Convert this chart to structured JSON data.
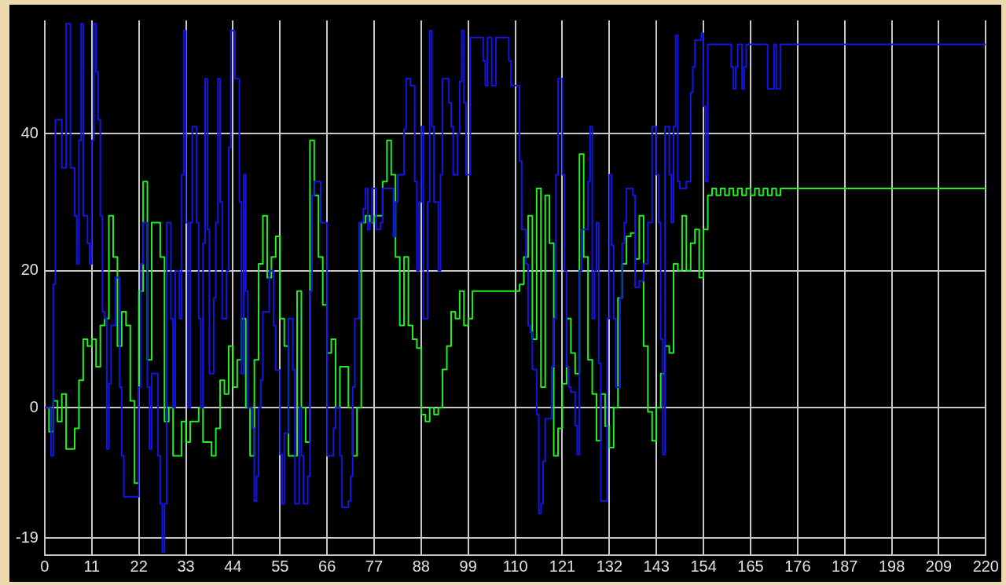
{
  "chart_data": {
    "type": "step",
    "xlim": [
      0,
      220
    ],
    "xticks": [
      0,
      11,
      22,
      33,
      44,
      55,
      66,
      77,
      88,
      99,
      110,
      121,
      132,
      143,
      154,
      165,
      176,
      187,
      198,
      209,
      220
    ],
    "ylim": [
      -21.5,
      56.5
    ],
    "yticks": [
      -19,
      0,
      20,
      40
    ],
    "grid": true,
    "series": [
      {
        "color": "#1414e6",
        "x": [
          0,
          1.5,
          2,
          2.5,
          4,
          5,
          6,
          7,
          7.5,
          8,
          8.5,
          9,
          10,
          10.5,
          11,
          11.5,
          12,
          12.5,
          13,
          13.5,
          14,
          14.5,
          15,
          15.5,
          16.5,
          17.5,
          18,
          18.5,
          22,
          22.5,
          23,
          24,
          24.5,
          25,
          26.5,
          27,
          27.5,
          28,
          28.5,
          29.5,
          30,
          30.5,
          31.5,
          32,
          32.5,
          33,
          33.5,
          34,
          34.5,
          35.5,
          36,
          36.5,
          37,
          37.5,
          38,
          38.5,
          39.5,
          40,
          40.5,
          41,
          41.5,
          42.5,
          43,
          43.5,
          44.5,
          45.5,
          46,
          46.5,
          47,
          47.5,
          48.5,
          49,
          49.5,
          50,
          50.5,
          51,
          52.5,
          53.5,
          54,
          55,
          55.5,
          56,
          57,
          58,
          58.5,
          59.5,
          60,
          60.5,
          61.5,
          62,
          62.5,
          63,
          64.5,
          66,
          67.5,
          68,
          69,
          69.5,
          71,
          71.5,
          72,
          72.5,
          73.5,
          74.5,
          75,
          75.5,
          76,
          76.5,
          77.5,
          78.5,
          79,
          81.5,
          82,
          82.5,
          84,
          84.5,
          85.5,
          86.5,
          87,
          87.5,
          88,
          88.5,
          89.5,
          90,
          90.5,
          91,
          92,
          92.5,
          93,
          94.5,
          95,
          95.5,
          96.5,
          97,
          97.5,
          98,
          98.5,
          99.5,
          102.5,
          103,
          103.5,
          104.5,
          105.5,
          108.5,
          109,
          111,
          111.5,
          112.5,
          113,
          113.5,
          114,
          115,
          115.5,
          116,
          116.5,
          117,
          118.5,
          119,
          119.5,
          120,
          121,
          121.5,
          122,
          122.5,
          123,
          124,
          124.5,
          125,
          125.5,
          127,
          127.5,
          128,
          128.5,
          129,
          129.5,
          130,
          131.5,
          132,
          132.5,
          133,
          133.5,
          134.5,
          135,
          135.5,
          136,
          137.5,
          138,
          139,
          140,
          141,
          142,
          143,
          143.5,
          144,
          144.5,
          145,
          146,
          146.5,
          147,
          147.5,
          148,
          148.5,
          150,
          151,
          151.5,
          152,
          153.5,
          154,
          154.5,
          155,
          160.5,
          161,
          161.5,
          162,
          163,
          163.5,
          164,
          169,
          170.5,
          171,
          172,
          220
        ],
        "values": [
          0,
          -7,
          18,
          42,
          35,
          56,
          35,
          28,
          21,
          39,
          56,
          28,
          24,
          21,
          39,
          56,
          49,
          42,
          28,
          14,
          13,
          -6,
          3.5,
          12,
          19,
          3,
          -7,
          -13,
          3,
          21,
          27,
          3,
          -6,
          5,
          -7,
          -14,
          -21,
          -14,
          27,
          13,
          0,
          20,
          13,
          34,
          55,
          27,
          0,
          27,
          41,
          27,
          13,
          0,
          24,
          48,
          26,
          5,
          16,
          27,
          48,
          30,
          13,
          20,
          38,
          55,
          48,
          30,
          5,
          34,
          17,
          0,
          -3,
          -13.6,
          -10,
          0,
          4,
          14,
          20,
          12,
          5.5,
          -6.8,
          -14,
          -3.7,
          13,
          5.6,
          -14,
          0,
          -7,
          -14,
          -10,
          17,
          31,
          33,
          27,
          -7,
          -3,
          0,
          -7,
          -14.5,
          -13.6,
          -10,
          3,
          13,
          27,
          29,
          32,
          26,
          27,
          32,
          26,
          27,
          32,
          25,
          30,
          34,
          40.6,
          48,
          47,
          33,
          20,
          30,
          41,
          13,
          30,
          55,
          41,
          30,
          20,
          34,
          48,
          44.5,
          41,
          34,
          40,
          47.6,
          55,
          44.5,
          34,
          54,
          50.6,
          47,
          54,
          47,
          54,
          50.6,
          47,
          36,
          26,
          21,
          12,
          11,
          5.6,
          -1,
          -15.4,
          -14,
          -7.8,
          -1.6,
          6,
          13,
          34,
          48,
          34,
          20,
          6,
          3,
          2.3,
          -2.6,
          -6.8,
          20,
          26,
          33,
          41,
          13,
          20,
          27,
          6.5,
          -13.6,
          13,
          34,
          23.7,
          13,
          3,
          16,
          24,
          27,
          32,
          31,
          17.6,
          18.5,
          21,
          27,
          41,
          34,
          27,
          10,
          -6.8,
          41,
          34,
          27,
          41,
          54.3,
          33,
          32,
          33,
          46,
          49.7,
          53.6,
          54.6,
          44,
          33,
          53,
          49.7,
          46.5,
          49.7,
          53,
          46.5,
          49.7,
          53,
          46.5,
          53,
          46.5,
          53,
          53
        ]
      },
      {
        "color": "#22ee22",
        "x": [
          0,
          1,
          2,
          3,
          4,
          5,
          7,
          8,
          9,
          10,
          11,
          12,
          13,
          14,
          15,
          16,
          17,
          18,
          19,
          20,
          21,
          22,
          23,
          24,
          25,
          27,
          28,
          29,
          30,
          32,
          33,
          34,
          36,
          37,
          39,
          40,
          41,
          42,
          43,
          44,
          45,
          46,
          47,
          48,
          49,
          50,
          51,
          52,
          53,
          54,
          55,
          56,
          57,
          59,
          60,
          61,
          62,
          63,
          64,
          65,
          66,
          67,
          68,
          69,
          71,
          72,
          73,
          74,
          75,
          76,
          77,
          79,
          80,
          81,
          82,
          83,
          84,
          85,
          86,
          87,
          88,
          89,
          90,
          91,
          92,
          93,
          94,
          95,
          96,
          97,
          98,
          99,
          100,
          111,
          112,
          113,
          114,
          115,
          116,
          117,
          118,
          119,
          120,
          121,
          122,
          123,
          124,
          125,
          126,
          127,
          128,
          129,
          130,
          131,
          132,
          133,
          134,
          135,
          136,
          137,
          138,
          139,
          140,
          141,
          142,
          143,
          144,
          145,
          146,
          147,
          148,
          149,
          150,
          151,
          152,
          153,
          154,
          155,
          156,
          157,
          158,
          159,
          160,
          161,
          162,
          163,
          164,
          165,
          166,
          167,
          168,
          169,
          170,
          171,
          172,
          220
        ],
        "values": [
          0,
          -3.5,
          1,
          -2,
          2,
          -6,
          -3,
          4,
          10,
          9,
          10,
          6,
          12,
          13,
          28,
          22,
          9,
          14,
          12,
          1,
          -11,
          17,
          33,
          7,
          27,
          22,
          -2,
          0,
          -7,
          -2,
          -5,
          -2,
          0,
          -5,
          -7,
          -3,
          4,
          2,
          9,
          3,
          7,
          13,
          0,
          -7,
          7,
          21,
          28,
          19,
          22,
          25,
          13,
          9,
          -7,
          17,
          0,
          -5,
          39,
          31,
          22,
          15,
          8,
          10,
          0,
          6,
          0,
          -7,
          0,
          27,
          28,
          27,
          28,
          33,
          39,
          34,
          22,
          12,
          22,
          12,
          10,
          8.7,
          -1,
          -2,
          0,
          -1,
          0,
          5.6,
          9,
          14,
          13,
          17,
          12,
          13,
          17,
          18,
          22,
          28,
          10,
          32,
          3,
          31,
          24,
          -7,
          -3,
          3.5,
          13,
          8,
          5,
          37,
          22,
          7,
          2,
          -4.8,
          2,
          -2.7,
          -5.8,
          0,
          16,
          21,
          25,
          25.5,
          21.7,
          28,
          9,
          -0.6,
          -4.8,
          0,
          5,
          9,
          8,
          21,
          20,
          28,
          20,
          24,
          26,
          19,
          26,
          31,
          32,
          31,
          32,
          31,
          32,
          31,
          32,
          31,
          32,
          31,
          32,
          31,
          32,
          31,
          32,
          31,
          32,
          32
        ]
      }
    ]
  }
}
